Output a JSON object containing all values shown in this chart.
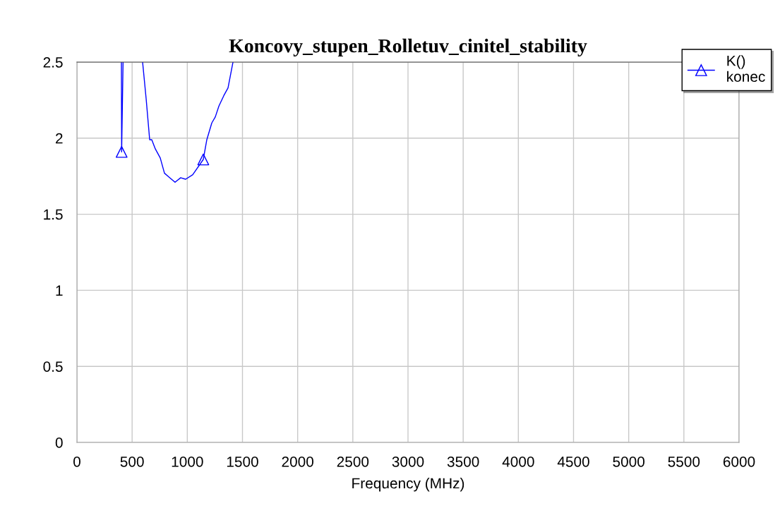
{
  "chart_data": {
    "type": "line",
    "title": "Koncovy_stupen_Rolletuv_cinitel_stability",
    "xlabel": "Frequency (MHz)",
    "series": [
      {
        "name": "K()\nkonec",
        "color": "#0000ff",
        "x": [
          403,
          405,
          418,
          null,
          595,
          627,
          659,
          678,
          710,
          755,
          793,
          825,
          889,
          940,
          985,
          1049,
          1145,
          1177,
          1222,
          1254,
          1286,
          1331,
          1369,
          1414
        ],
        "marker": "none",
        "values": [
          2.5,
          1.91,
          2.5,
          null,
          2.5,
          2.26,
          1.99,
          1.99,
          1.93,
          1.87,
          1.77,
          1.75,
          1.71,
          1.74,
          1.73,
          1.76,
          1.86,
          1.99,
          2.1,
          2.14,
          2.21,
          2.28,
          2.33,
          2.5
        ]
      },
      {
        "type": "scatter",
        "color": "#0000ff",
        "marker": "triangle",
        "x": [
          405,
          1145
        ],
        "values": [
          1.91,
          1.86
        ]
      }
    ],
    "xlim": [
      0,
      6000
    ],
    "xticks": [
      0,
      500,
      1000,
      1500,
      2000,
      2500,
      3000,
      3500,
      4000,
      4500,
      5000,
      5500,
      6000
    ],
    "ylim": [
      0,
      2.5
    ],
    "yticks": [
      0,
      0.5,
      1,
      1.5,
      2,
      2.5
    ],
    "grid": true,
    "legend": "top right",
    "line_style": "solid"
  }
}
